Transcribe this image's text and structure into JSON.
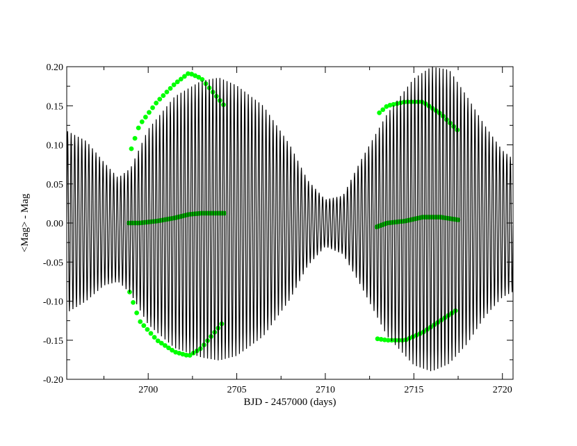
{
  "chart_data": {
    "type": "line",
    "title": "",
    "xlabel": "BJD - 2457000 (days)",
    "ylabel": "<Mag> - Mag",
    "xlim": [
      2695.4,
      2720.6
    ],
    "ylim": [
      -0.2,
      0.2
    ],
    "x_ticks": [
      2700,
      2705,
      2710,
      2715,
      2720
    ],
    "x_tick_labels": [
      "2700",
      "2705",
      "2710",
      "2715",
      "2720"
    ],
    "y_ticks": [
      -0.2,
      -0.15,
      -0.1,
      -0.05,
      0.0,
      0.05,
      0.1,
      0.15,
      0.2
    ],
    "y_tick_labels": [
      "-0.20",
      "-0.15",
      "-0.10",
      "-0.05",
      "0.00",
      "0.05",
      "0.10",
      "0.15",
      "0.20"
    ],
    "grid": false,
    "legend": "none",
    "series": [
      {
        "kind": "model-line",
        "color": "#000000",
        "oscillation_period_days": 0.2,
        "envelope": {
          "x": [
            2695.4,
            2696.5,
            2697.5,
            2698.3,
            2699.0,
            2700.0,
            2701.5,
            2703.0,
            2704.0,
            2705.0,
            2706.5,
            2708.0,
            2709.0,
            2710.0,
            2711.0,
            2712.0,
            2713.5,
            2715.0,
            2716.0,
            2717.0,
            2718.0,
            2719.0,
            2720.0,
            2720.6
          ],
          "upper": [
            0.118,
            0.105,
            0.078,
            0.058,
            0.07,
            0.12,
            0.162,
            0.182,
            0.186,
            0.176,
            0.15,
            0.1,
            0.055,
            0.03,
            0.035,
            0.08,
            0.14,
            0.185,
            0.2,
            0.196,
            0.162,
            0.125,
            0.093,
            0.082
          ],
          "lower": [
            -0.115,
            -0.1,
            -0.08,
            -0.075,
            -0.09,
            -0.13,
            -0.16,
            -0.172,
            -0.176,
            -0.17,
            -0.145,
            -0.098,
            -0.055,
            -0.03,
            -0.04,
            -0.08,
            -0.145,
            -0.182,
            -0.19,
            -0.18,
            -0.155,
            -0.12,
            -0.095,
            -0.088
          ]
        }
      },
      {
        "kind": "observed-points",
        "color": "#00ff00",
        "segments": [
          {
            "x_start": 2698.9,
            "x_end": 2704.3,
            "cadence_days": 0.05,
            "envelope": {
              "x": [
                2698.9,
                2699.5,
                2700.5,
                2701.5,
                2702.3,
                2703.0,
                2704.3
              ],
              "upper": [
                0.085,
                0.125,
                0.155,
                0.178,
                0.192,
                0.185,
                0.15
              ],
              "lower": [
                -0.085,
                -0.125,
                -0.15,
                -0.165,
                -0.17,
                -0.16,
                -0.125
              ]
            }
          },
          {
            "x_start": 2712.9,
            "x_end": 2717.5,
            "cadence_days": 0.05,
            "envelope": {
              "x": [
                2712.9,
                2713.5,
                2714.5,
                2715.5,
                2716.5,
                2717.5
              ],
              "upper": [
                0.138,
                0.15,
                0.155,
                0.155,
                0.14,
                0.118
              ],
              "lower": [
                -0.148,
                -0.15,
                -0.15,
                -0.14,
                -0.125,
                -0.11
              ]
            }
          }
        ]
      }
    ]
  }
}
